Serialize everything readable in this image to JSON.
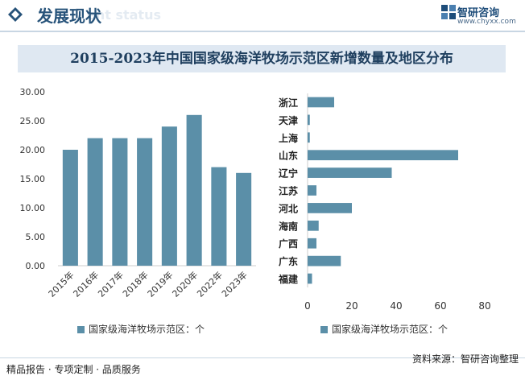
{
  "header": {
    "title": "发展现状",
    "subtitle": "ent status",
    "logo_name": "智研咨询",
    "logo_url": "www.chyxx.com"
  },
  "footer": {
    "left": "精品报告 · 专项定制 · 品质服务",
    "right": "资料来源：智研咨询整理"
  },
  "colors": {
    "bar": "#5b8fa8",
    "title_band": "#dfe8f2",
    "brand": "#27537a"
  },
  "chart_data": [
    {
      "type": "bar",
      "title": "2015-2023年中国国家级海洋牧场示范区新增数量及地区分布",
      "categories": [
        "2015年",
        "2016年",
        "2017年",
        "2018年",
        "2019年",
        "2020年",
        "2022年",
        "2023年"
      ],
      "values": [
        20,
        22,
        22,
        22,
        24,
        26,
        17,
        16
      ],
      "ylim": [
        0,
        30
      ],
      "yticks": [
        "0.00",
        "5.00",
        "10.00",
        "15.00",
        "20.00",
        "25.00",
        "30.00"
      ],
      "legend": "国家级海洋牧场示范区：个",
      "xlabel": "",
      "ylabel": ""
    },
    {
      "type": "bar",
      "orientation": "horizontal",
      "categories": [
        "浙江",
        "天津",
        "上海",
        "山东",
        "辽宁",
        "江苏",
        "河北",
        "海南",
        "广西",
        "广东",
        "福建"
      ],
      "values": [
        12,
        1,
        1,
        68,
        38,
        4,
        20,
        5,
        4,
        15,
        2
      ],
      "xlim": [
        0,
        80
      ],
      "xticks": [
        "0",
        "20",
        "40",
        "60",
        "80"
      ],
      "legend": "国家级海洋牧场示范区：个"
    }
  ]
}
